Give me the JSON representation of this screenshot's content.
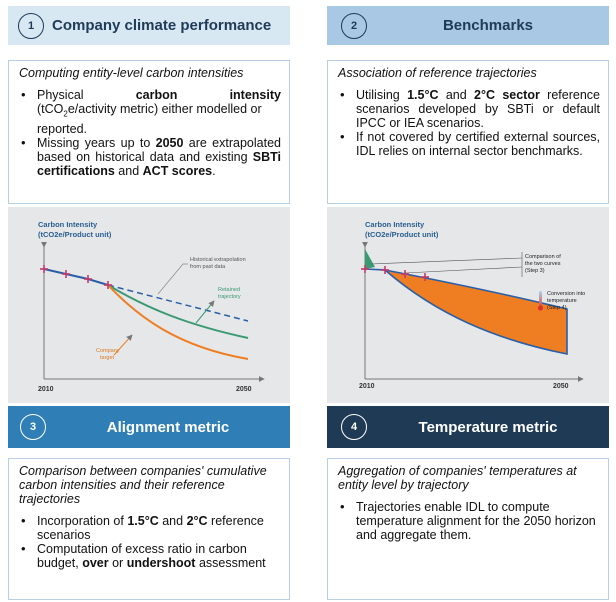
{
  "q1": {
    "number": "1",
    "title": "Company climate performance",
    "subtitle": "Computing entity-level carbon intensities",
    "b1_a": "Physical",
    "b1_b": "carbon",
    "b1_c": "intensity",
    "b1_d": "(tCO",
    "b1_e": "2",
    "b1_f": "e/activity metric) either modelled or reported.",
    "b2_a": "Missing years up to",
    "b2_b": "2050",
    "b2_c": "are extrapolated based on historical data and existing",
    "b2_d": "SBTi certifications",
    "b2_e": "and",
    "b2_f": "ACT scores",
    "b2_g": ".",
    "chart": {
      "ylabel_1": "Carbon Intensity",
      "ylabel_2": "(tCO2e/Product unit)",
      "x_start": "2010",
      "x_end": "2050",
      "note_hist_1": "Historical extrapolation",
      "note_hist_2": "from past data",
      "note_ret_1": "Retained",
      "note_ret_2": "trajectory",
      "note_comp_1": "Company",
      "note_comp_2": "target"
    }
  },
  "q2": {
    "number": "2",
    "title": "Benchmarks",
    "subtitle": "Association of reference trajectories",
    "b1_a": "Utilising",
    "b1_b": "1.5°C",
    "b1_c": "and",
    "b1_d": "2°C sector",
    "b1_e": "reference scenarios developed by SBTi or default IPCC or IEA scenarios.",
    "b2": "If not covered by certified external sources, IDL relies on internal sector benchmarks.",
    "chart": {
      "ylabel_1": "Carbon Intensity",
      "ylabel_2": "(tCO2e/Product unit)",
      "x_start": "2010",
      "x_end": "2050",
      "note_cmp_1": "Comparison of",
      "note_cmp_2": "the two curves",
      "note_cmp_3": "(Step 3)",
      "note_conv_1": "Conversion into",
      "note_conv_2": "temperature",
      "note_conv_3": "(Step 4)"
    }
  },
  "q3": {
    "number": "3",
    "title": "Alignment metric",
    "subtitle": "Comparison between companies' cumulative carbon intensities and their reference trajectories",
    "b1_a": "Incorporation of",
    "b1_b": "1.5°C",
    "b1_c": "and",
    "b1_d": "2°C",
    "b1_e": "reference scenarios",
    "b2_a": "Computation of excess ratio in carbon budget,",
    "b2_b": "over",
    "b2_c": "or",
    "b2_d": "undershoot",
    "b2_e": "assessment"
  },
  "q4": {
    "number": "4",
    "title": "Temperature metric",
    "subtitle": "Aggregation of companies' temperatures at entity level by trajectory",
    "b1": "Trajectories enable IDL to compute temperature alignment for the 2050 horizon and aggregate them."
  },
  "colors": {
    "blue_line": "#2a5fa8",
    "green": "#3c9a73",
    "orange": "#ef7d22",
    "marker": "#c0396b"
  }
}
